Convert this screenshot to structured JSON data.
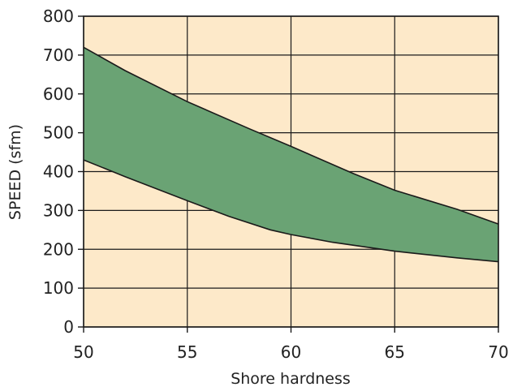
{
  "chart_data": {
    "type": "area",
    "xlabel": "Shore hardness",
    "ylabel": "SPEED (sfm)",
    "xlim": [
      50,
      70
    ],
    "ylim": [
      0,
      800
    ],
    "x_ticks": [
      "50",
      "55",
      "60",
      "65",
      "70"
    ],
    "y_ticks": [
      "0",
      "100",
      "200",
      "300",
      "400",
      "500",
      "600",
      "700",
      "800"
    ],
    "grid": true,
    "series": [
      {
        "role": "upper-bound",
        "x": [
          50,
          52,
          55,
          58,
          60,
          63,
          65,
          68,
          70
        ],
        "y": [
          720,
          660,
          580,
          510,
          465,
          395,
          352,
          303,
          265
        ]
      },
      {
        "role": "lower-bound",
        "x": [
          50,
          52,
          55,
          57,
          59,
          60,
          62,
          65,
          68,
          70
        ],
        "y": [
          430,
          387,
          325,
          285,
          250,
          238,
          218,
          195,
          178,
          168
        ]
      }
    ],
    "colors": {
      "plot_background": "#fde9c9",
      "band_fill": "#6aa374",
      "line": "#1a1a1a",
      "grid": "#1a1a1a"
    }
  }
}
